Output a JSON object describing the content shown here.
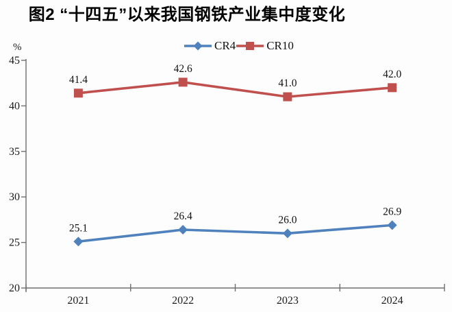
{
  "chart_data": {
    "type": "line",
    "title": "图2 “十四五”以来我国钢铁产业集中度变化",
    "xlabel": "",
    "ylabel": "%",
    "categories": [
      "2021",
      "2022",
      "2023",
      "2024"
    ],
    "series": [
      {
        "name": "CR4",
        "values": [
          25.1,
          26.4,
          26.0,
          26.9
        ],
        "color": "#4f81bd",
        "marker": "diamond"
      },
      {
        "name": "CR10",
        "values": [
          41.4,
          42.6,
          41.0,
          42.0
        ],
        "color": "#c0504d",
        "marker": "square"
      }
    ],
    "ylim": [
      20,
      45
    ],
    "yticks": [
      20,
      25,
      30,
      35,
      40,
      45
    ],
    "grid": false,
    "legend_position": "top-center",
    "data_labels": true,
    "data_label_decimals": 1
  },
  "colors": {
    "axis": "#6e6e6e",
    "tick_text": "#1c1c1c",
    "data_label_text": "#111111",
    "background": "#fdfdfd"
  }
}
